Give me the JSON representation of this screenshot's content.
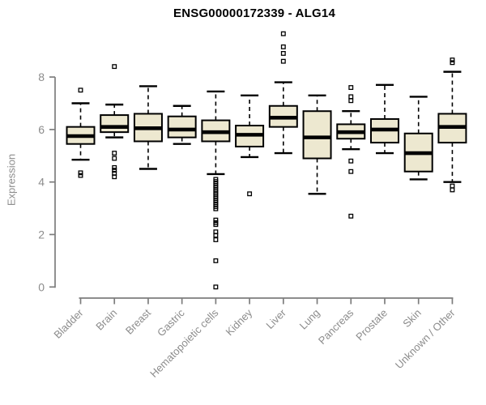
{
  "chart_data": {
    "type": "boxplot",
    "title": "ENSG00000172339 - ALG14",
    "ylabel": "Expression",
    "xlabel": "",
    "yticks": [
      0,
      2,
      4,
      6,
      8
    ],
    "ylim": [
      0,
      8
    ],
    "grid": false,
    "legend": "none",
    "categories": [
      "Bladder",
      "Brain",
      "Breast",
      "Gastric",
      "Hematopoietic cells",
      "Kidney",
      "Liver",
      "Lung",
      "Pancreas",
      "Prostate",
      "Skin",
      "Unknown / Other"
    ],
    "boxes": [
      {
        "category": "Bladder",
        "whisker_low": 4.85,
        "q1": 5.45,
        "median": 5.75,
        "q3": 6.1,
        "whisker_high": 7.0,
        "outliers": [
          7.5,
          4.35,
          4.25
        ]
      },
      {
        "category": "Brain",
        "whisker_low": 5.7,
        "q1": 5.9,
        "median": 6.1,
        "q3": 6.55,
        "whisker_high": 6.95,
        "outliers": [
          8.4,
          5.1,
          4.9,
          4.55,
          4.45,
          4.33,
          4.2
        ]
      },
      {
        "category": "Breast",
        "whisker_low": 4.5,
        "q1": 5.55,
        "median": 6.05,
        "q3": 6.6,
        "whisker_high": 7.65,
        "outliers": []
      },
      {
        "category": "Gastric",
        "whisker_low": 5.45,
        "q1": 5.7,
        "median": 6.0,
        "q3": 6.5,
        "whisker_high": 6.9,
        "outliers": []
      },
      {
        "category": "Hematopoietic cells",
        "whisker_low": 4.3,
        "q1": 5.55,
        "median": 5.9,
        "q3": 6.35,
        "whisker_high": 7.45,
        "outliers": [
          4.1,
          4.02,
          3.94,
          3.86,
          3.78,
          3.7,
          3.62,
          3.54,
          3.46,
          3.38,
          3.3,
          3.22,
          3.14,
          3.06,
          2.98,
          2.55,
          2.45,
          2.38,
          2.1,
          1.97,
          1.8,
          1.0,
          0.0
        ]
      },
      {
        "category": "Kidney",
        "whisker_low": 4.95,
        "q1": 5.35,
        "median": 5.8,
        "q3": 6.15,
        "whisker_high": 7.3,
        "outliers": [
          3.55
        ]
      },
      {
        "category": "Liver",
        "whisker_low": 5.1,
        "q1": 6.1,
        "median": 6.45,
        "q3": 6.9,
        "whisker_high": 7.8,
        "outliers": [
          9.65,
          9.15,
          8.9,
          8.6
        ]
      },
      {
        "category": "Lung",
        "whisker_low": 3.55,
        "q1": 4.9,
        "median": 5.7,
        "q3": 6.7,
        "whisker_high": 7.3,
        "outliers": []
      },
      {
        "category": "Pancreas",
        "whisker_low": 5.25,
        "q1": 5.65,
        "median": 5.9,
        "q3": 6.2,
        "whisker_high": 6.7,
        "outliers": [
          7.6,
          7.25,
          7.1,
          4.8,
          4.4,
          2.7
        ]
      },
      {
        "category": "Prostate",
        "whisker_low": 5.1,
        "q1": 5.5,
        "median": 6.0,
        "q3": 6.4,
        "whisker_high": 7.7,
        "outliers": []
      },
      {
        "category": "Skin",
        "whisker_low": 4.1,
        "q1": 4.4,
        "median": 5.1,
        "q3": 5.85,
        "whisker_high": 7.25,
        "outliers": []
      },
      {
        "category": "Unknown / Other",
        "whisker_low": 4.0,
        "q1": 5.5,
        "median": 6.1,
        "q3": 6.6,
        "whisker_high": 8.2,
        "outliers": [
          8.65,
          8.55,
          3.85,
          3.7
        ]
      }
    ],
    "colors": {
      "box_fill": "#EDE8D0",
      "box_border": "#000000",
      "median": "#000000",
      "whisker": "#000000",
      "outlier": "#000000",
      "axis": "#7d7d7d",
      "tick_text": "#8c8c8c",
      "title_text": "#000000",
      "background": "#ffffff"
    }
  }
}
